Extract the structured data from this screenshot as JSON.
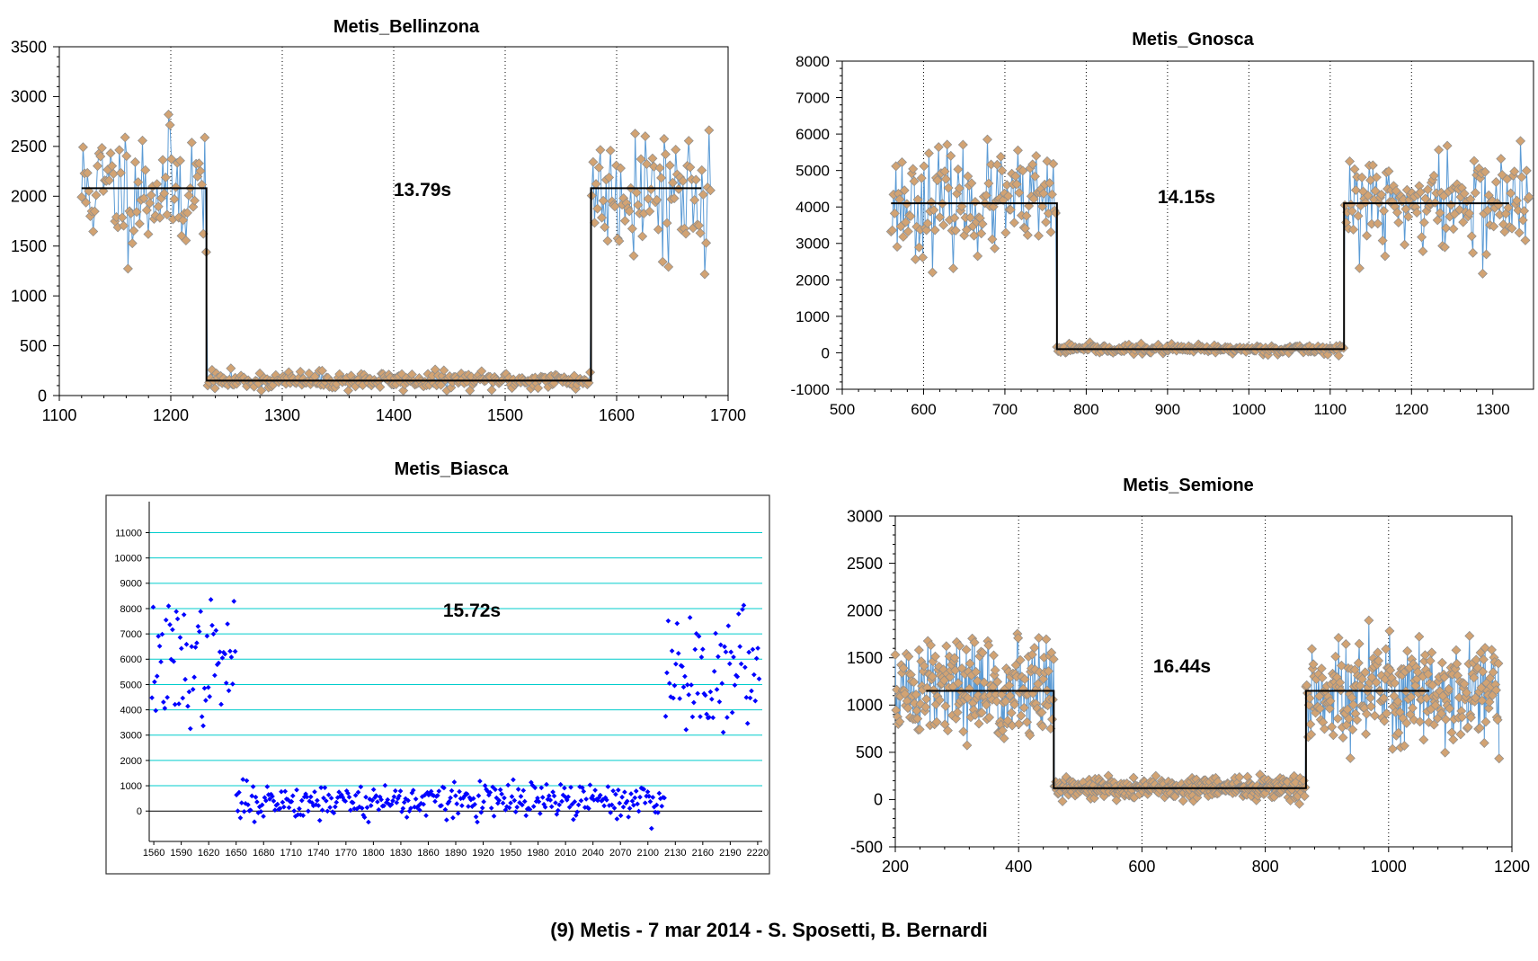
{
  "caption": "(9) Metis - 7 mar 2014 - S. Sposetti, B. Bernardi",
  "colors": {
    "point_fill": "#D2A373",
    "point_stroke": "#8C8C8C",
    "trace_line": "#5B9BD5",
    "model_line": "#000000",
    "biasca_points": "#0000FF",
    "biasca_grid": "#00CCCC",
    "dotted_grid": "#000000"
  },
  "chart_data": [
    {
      "type": "scatter",
      "title": "Metis_Bellinzona",
      "annotation": "13.79s",
      "xlim": [
        1100,
        1700
      ],
      "ylim": [
        0,
        3500
      ],
      "x_ticks": [
        "1100",
        "1200",
        "1300",
        "1400",
        "1500",
        "1600",
        "1700"
      ],
      "y_ticks": [
        "0",
        "500",
        "1000",
        "1500",
        "2000",
        "2500",
        "3000",
        "3500"
      ],
      "x_tick_values": [
        1100,
        1200,
        1300,
        1400,
        1500,
        1600,
        1700
      ],
      "y_tick_values": [
        0,
        500,
        1000,
        1500,
        2000,
        2500,
        3000,
        3500
      ],
      "data_range": [
        1120,
        1685
      ],
      "model": {
        "x_start": 1120,
        "ingress": 1232,
        "egress": 1577,
        "x_end": 1676,
        "high": 2080,
        "low": 150
      },
      "scatter": {
        "high_sd": 320,
        "low_sd": 45,
        "step": 1.3,
        "seed": 11
      }
    },
    {
      "type": "scatter",
      "title": "Metis_Gnosca",
      "annotation": "14.15s",
      "xlim": [
        500,
        1350
      ],
      "ylim": [
        -1000,
        8000
      ],
      "x_ticks": [
        "500",
        "600",
        "700",
        "800",
        "900",
        "1000",
        "1100",
        "1200",
        "1300"
      ],
      "y_ticks": [
        "-1000",
        "0",
        "1000",
        "2000",
        "3000",
        "4000",
        "5000",
        "6000",
        "7000",
        "8000"
      ],
      "x_tick_values": [
        500,
        600,
        700,
        800,
        900,
        1000,
        1100,
        1200,
        1300
      ],
      "y_tick_values": [
        -1000,
        0,
        1000,
        2000,
        3000,
        4000,
        5000,
        6000,
        7000,
        8000
      ],
      "data_range": [
        560,
        1345
      ],
      "model": {
        "x_start": 560,
        "ingress": 764,
        "egress": 1117,
        "x_end": 1320,
        "high": 4100,
        "low": 100
      },
      "scatter": {
        "high_sd": 700,
        "low_sd": 60,
        "step": 1.5,
        "seed": 23
      }
    },
    {
      "type": "scatter",
      "title": "Metis_Biasca",
      "annotation": "15.72s",
      "xlim": [
        1555,
        2225
      ],
      "ylim": [
        -1200,
        11800
      ],
      "x_ticks": [
        "1560",
        "1590",
        "1620",
        "1650",
        "1680",
        "1710",
        "1740",
        "1770",
        "1800",
        "1830",
        "1860",
        "1890",
        "1920",
        "1950",
        "1980",
        "2010",
        "2040",
        "2070",
        "2100",
        "2130",
        "2160",
        "2190",
        "2220"
      ],
      "y_ticks": [
        "0",
        "1000",
        "2000",
        "3000",
        "4000",
        "5000",
        "6000",
        "7000",
        "8000",
        "9000",
        "10000",
        "11000"
      ],
      "x_tick_values": [
        1560,
        1590,
        1620,
        1650,
        1680,
        1710,
        1740,
        1770,
        1800,
        1830,
        1860,
        1890,
        1920,
        1950,
        1980,
        2010,
        2040,
        2070,
        2100,
        2130,
        2160,
        2190,
        2220
      ],
      "y_tick_values": [
        0,
        1000,
        2000,
        3000,
        4000,
        5000,
        6000,
        7000,
        8000,
        9000,
        10000,
        11000
      ],
      "data_range": [
        1558,
        2222
      ],
      "model": {
        "ingress": 1650,
        "egress": 2119,
        "high_left": 5800,
        "high_right": 5400,
        "low": 400
      },
      "scatter": {
        "high_sd": 1200,
        "low_sd": 350,
        "step": 1.4,
        "seed": 37
      },
      "grid": "horizontal"
    },
    {
      "type": "scatter",
      "title": "Metis_Semione",
      "annotation": "16.44s",
      "xlim": [
        200,
        1200
      ],
      "ylim": [
        -500,
        3000
      ],
      "x_ticks": [
        "200",
        "400",
        "600",
        "800",
        "1000",
        "1200"
      ],
      "y_ticks": [
        "-500",
        "0",
        "500",
        "1000",
        "1500",
        "2000",
        "2500",
        "3000"
      ],
      "x_tick_values": [
        200,
        400,
        600,
        800,
        1000,
        1200
      ],
      "y_tick_values": [
        -500,
        0,
        500,
        1000,
        1500,
        2000,
        2500,
        3000
      ],
      "data_range": [
        200,
        1180
      ],
      "model": {
        "x_start": 250,
        "ingress": 457,
        "egress": 866,
        "x_end": 1066,
        "high": 1150,
        "low": 120
      },
      "scatter": {
        "high_sd": 280,
        "low_sd": 55,
        "step": 1.2,
        "seed": 51
      }
    }
  ]
}
